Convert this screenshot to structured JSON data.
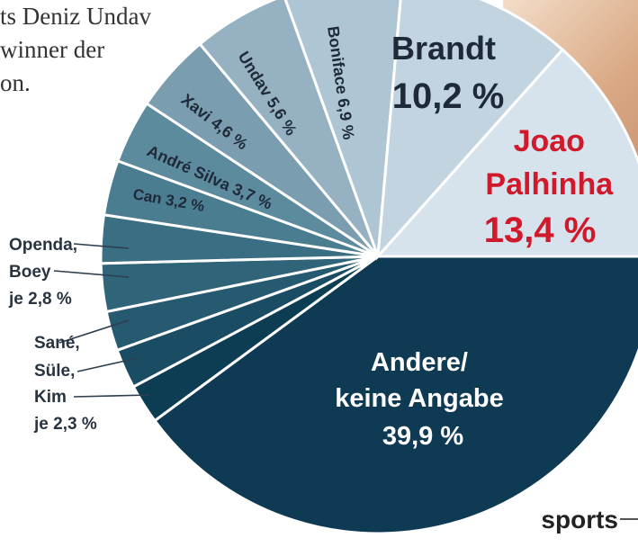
{
  "intro_text": [
    "ts Deniz Undav",
    "winner der",
    "on."
  ],
  "brand": "sports",
  "chart_data": {
    "type": "pie",
    "title": "",
    "start": "3 o'clock, clockwise",
    "slices": [
      {
        "label": "Andere/ keine Angabe",
        "value": 39.9,
        "color": "#0f3a54"
      },
      {
        "label": "Kim",
        "value": 2.3,
        "color": "#0d3d52"
      },
      {
        "label": "Süle",
        "value": 2.3,
        "color": "#1a4c64"
      },
      {
        "label": "Sané",
        "value": 2.3,
        "color": "#255a70"
      },
      {
        "label": "Boey",
        "value": 2.8,
        "color": "#306478"
      },
      {
        "label": "Openda",
        "value": 2.8,
        "color": "#3a6e82"
      },
      {
        "label": "Can",
        "value": 3.2,
        "color": "#4b7d90"
      },
      {
        "label": "André Silva",
        "value": 3.7,
        "color": "#5d8b9e"
      },
      {
        "label": "Xavi",
        "value": 4.6,
        "color": "#7a9db0"
      },
      {
        "label": "Undav",
        "value": 5.6,
        "color": "#95b1c2"
      },
      {
        "label": "Boniface",
        "value": 6.9,
        "color": "#aec5d3"
      },
      {
        "label": "Brandt",
        "value": 10.2,
        "color": "#c1d4e0"
      },
      {
        "label": "Joao Palhinha",
        "value": 13.4,
        "color": "#d6e3ec"
      }
    ],
    "labels": {
      "andere": [
        "Andere/",
        "keine Angabe",
        "39,9 %"
      ],
      "joao": [
        "Joao",
        "Palhinha",
        "13,4 %"
      ],
      "brandt": [
        "Brandt",
        "10,2 %"
      ],
      "boniface": "Boniface 6,9 %",
      "undav": "Undav 5,6 %",
      "xavi": "Xavi 4,6 %",
      "andre": "André Silva 3,7 %",
      "can": "Can 3,2 %",
      "openda_group": [
        "Openda,",
        "Boey",
        "je 2,8 %"
      ],
      "sane_group": [
        "Sané,",
        "Süle,",
        "Kim",
        "je 2,3 %"
      ]
    },
    "colors": {
      "highlight": "#d0192a",
      "dark_text": "#ffffff",
      "slice_separator": "#ffffff"
    }
  }
}
